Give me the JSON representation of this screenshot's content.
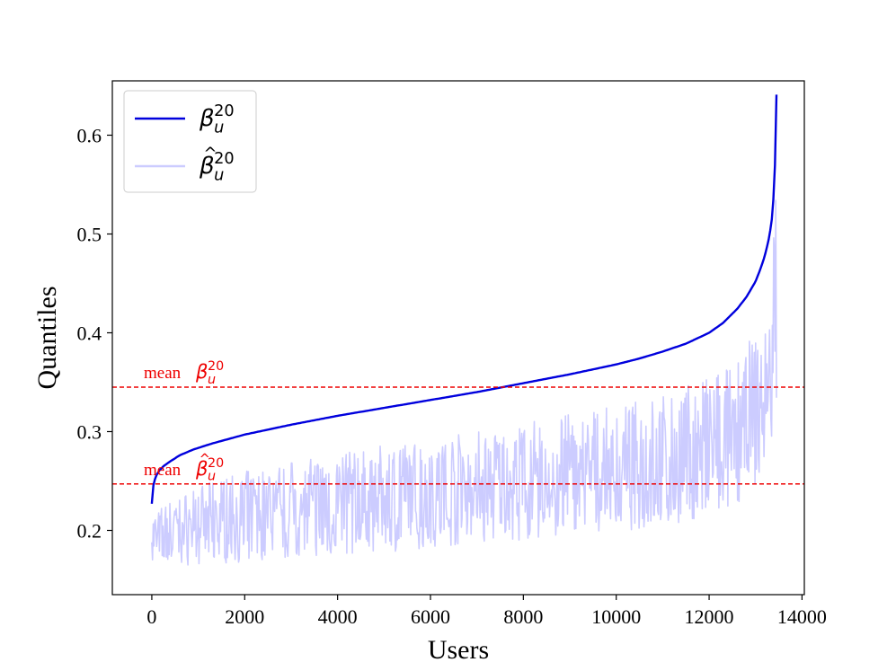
{
  "chart_data": {
    "type": "line",
    "xlabel": "Users",
    "ylabel": "Quantiles",
    "xlim": [
      -850,
      14050
    ],
    "ylim": [
      0.135,
      0.655
    ],
    "xticks": [
      0,
      2000,
      4000,
      6000,
      8000,
      10000,
      12000,
      14000
    ],
    "yticks": [
      0.2,
      0.3,
      0.4,
      0.5,
      0.6
    ],
    "grid": false,
    "legend_position": "top-left",
    "colors": {
      "true_series": "#0000dd",
      "estimated_series": "#ccccff",
      "mean_lines": "#ee0000"
    },
    "series": [
      {
        "name": "β_u^20",
        "style": "solid-dark-blue",
        "x": [
          0,
          30,
          80,
          150,
          250,
          400,
          600,
          900,
          1300,
          2000,
          3000,
          4000,
          5000,
          6000,
          7000,
          8000,
          9000,
          10000,
          10500,
          11000,
          11500,
          12000,
          12300,
          12600,
          12800,
          13000,
          13100,
          13200,
          13300,
          13350,
          13400,
          13430,
          13450
        ],
        "values": [
          0.227,
          0.245,
          0.254,
          0.26,
          0.265,
          0.27,
          0.276,
          0.282,
          0.288,
          0.297,
          0.307,
          0.316,
          0.324,
          0.332,
          0.34,
          0.349,
          0.358,
          0.368,
          0.374,
          0.381,
          0.389,
          0.4,
          0.41,
          0.424,
          0.436,
          0.452,
          0.464,
          0.478,
          0.498,
          0.515,
          0.545,
          0.59,
          0.641
        ]
      },
      {
        "name": "β̂_u^20",
        "style": "noisy-light-blue",
        "x": [
          0,
          1000,
          2000,
          3000,
          4000,
          5000,
          6000,
          7000,
          8000,
          9000,
          10000,
          11000,
          12000,
          12500,
          13000,
          13300,
          13450
        ],
        "values": [
          0.19,
          0.205,
          0.212,
          0.219,
          0.224,
          0.229,
          0.234,
          0.238,
          0.243,
          0.248,
          0.254,
          0.262,
          0.272,
          0.282,
          0.3,
          0.34,
          0.45
        ],
        "band_low": [
          0.165,
          0.165,
          0.168,
          0.172,
          0.175,
          0.178,
          0.182,
          0.186,
          0.19,
          0.194,
          0.198,
          0.205,
          0.212,
          0.222,
          0.24,
          0.28,
          0.33
        ],
        "band_high": [
          0.22,
          0.245,
          0.26,
          0.27,
          0.278,
          0.286,
          0.294,
          0.302,
          0.31,
          0.318,
          0.326,
          0.338,
          0.355,
          0.375,
          0.4,
          0.43,
          0.55
        ]
      }
    ],
    "annotations": [
      {
        "label": "mean",
        "symbol": "β",
        "hat": false,
        "sup": "20",
        "sub": "u",
        "y": 0.345
      },
      {
        "label": "mean",
        "symbol": "β",
        "hat": true,
        "sup": "20",
        "sub": "u",
        "y": 0.247
      }
    ]
  }
}
